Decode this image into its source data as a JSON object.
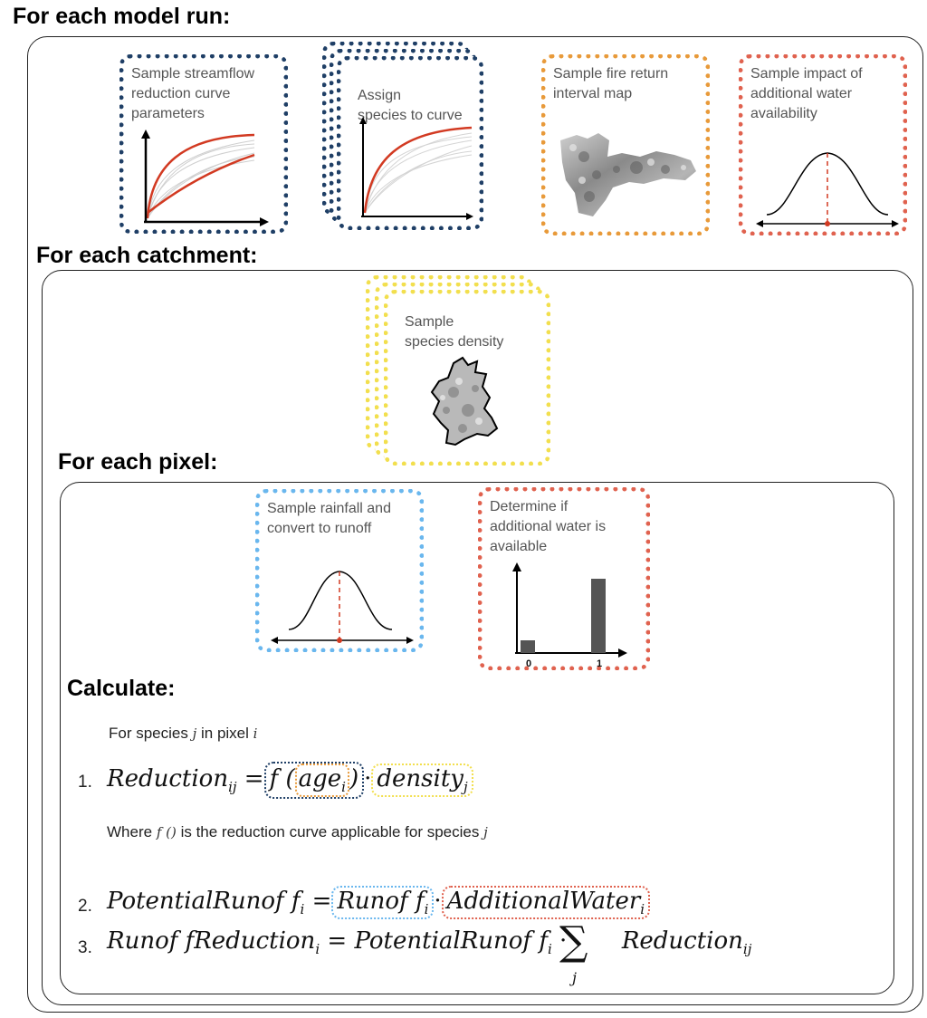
{
  "headings": {
    "model_run": "For each model run:",
    "catchment": "For each catchment:",
    "pixel": "For each pixel:",
    "calculate": "Calculate:"
  },
  "boxes": {
    "streamflow": "Sample streamflow\nreduction curve\nparameters",
    "species_curve": "Assign\nspecies to curve",
    "fire": "Sample fire return\ninterval map",
    "impact": "Sample impact of\nadditional water\navailability",
    "density": "Sample\nspecies density",
    "rainfall": "Sample rainfall and\nconvert to runoff",
    "additional": "Determine if\nadditional water is\navailable"
  },
  "bar_chart_labels": {
    "x0": "0",
    "x1": "1"
  },
  "text": {
    "for_species_a": "For species",
    "for_species_j": "j",
    "for_species_b": "in pixel",
    "for_species_i": "i",
    "where_a": "Where",
    "where_f": "f ()",
    "where_b": "is the reduction curve applicable for species",
    "where_j": "j"
  },
  "equations": {
    "n1": "1.",
    "n2": "2.",
    "n3": "3.",
    "eq1_lhs": "Reduction",
    "eq1_lhs_sub": "ij",
    "eq1_f": "f (",
    "eq1_age": "age",
    "eq1_age_sub": "i",
    "eq1_close": ")",
    "eq1_density": "density",
    "eq1_density_sub": "j",
    "eq2_lhs": "PotentialRunof f",
    "eq2_lhs_sub": "i",
    "eq2_runoff": "Runof f",
    "eq2_runoff_sub": "i",
    "eq2_water": "AdditionalWater",
    "eq2_water_sub": "i",
    "eq3_lhs": "Runof fReduction",
    "eq3_lhs_sub": "i",
    "eq3_mid": "PotentialRunof f",
    "eq3_mid_sub": "i",
    "eq3_sum_sub": "j",
    "eq3_red": "Reduction",
    "eq3_red_sub": "ij",
    "equals": "=",
    "dot": "·",
    "sigma": "∑"
  },
  "colors": {
    "dark_blue": "#1f3f66",
    "orange": "#e89a3a",
    "red": "#e0624f",
    "yellow": "#f2df4e",
    "light_blue": "#6ab7ee",
    "curve_red": "#d23a22"
  }
}
